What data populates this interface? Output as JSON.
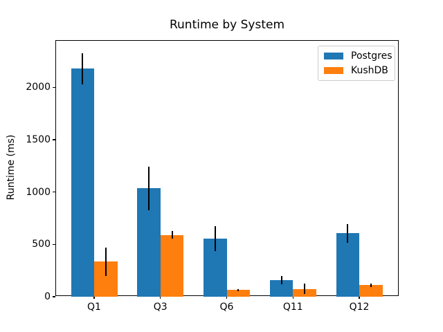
{
  "chart_data": {
    "type": "bar",
    "title": "Runtime by System",
    "xlabel": "",
    "ylabel": "Runtime (ms)",
    "categories": [
      "Q1",
      "Q3",
      "Q6",
      "Q11",
      "Q12"
    ],
    "series": [
      {
        "name": "Postgres",
        "color": "#1f77b4",
        "values": [
          2180,
          1035,
          555,
          158,
          605
        ],
        "errors": [
          150,
          210,
          120,
          40,
          90
        ]
      },
      {
        "name": "KushDB",
        "color": "#ff7f0e",
        "values": [
          335,
          590,
          65,
          75,
          110
        ],
        "errors": [
          135,
          35,
          10,
          48,
          15
        ]
      }
    ],
    "ylim": [
      0,
      2446
    ],
    "yticks": [
      0,
      500,
      1000,
      1500,
      2000
    ],
    "legend_position": "upper right",
    "grid": false,
    "error_bars": true
  }
}
